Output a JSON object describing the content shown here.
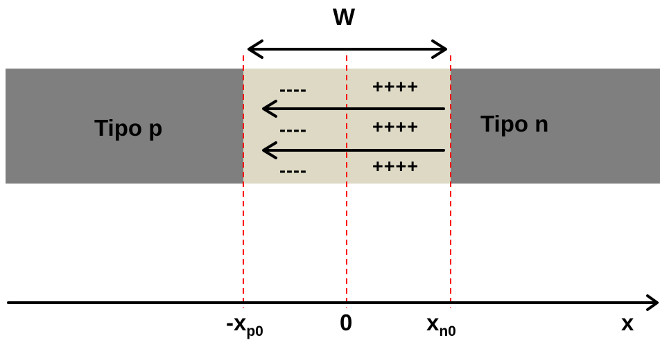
{
  "width_label": "W",
  "regions": {
    "p_label": "Tipo p",
    "n_label": "Tipo n"
  },
  "charges": {
    "negative": "----",
    "positive": "++++"
  },
  "axis": {
    "xp0_main": "-x",
    "xp0_sub": "p0",
    "zero": "0",
    "xn0_main": "x",
    "xn0_sub": "n0",
    "x_label": "x"
  },
  "colors": {
    "bulk": "#7f7f7f",
    "depletion": "#ddd9c4",
    "boundary": "#ff0000"
  }
}
